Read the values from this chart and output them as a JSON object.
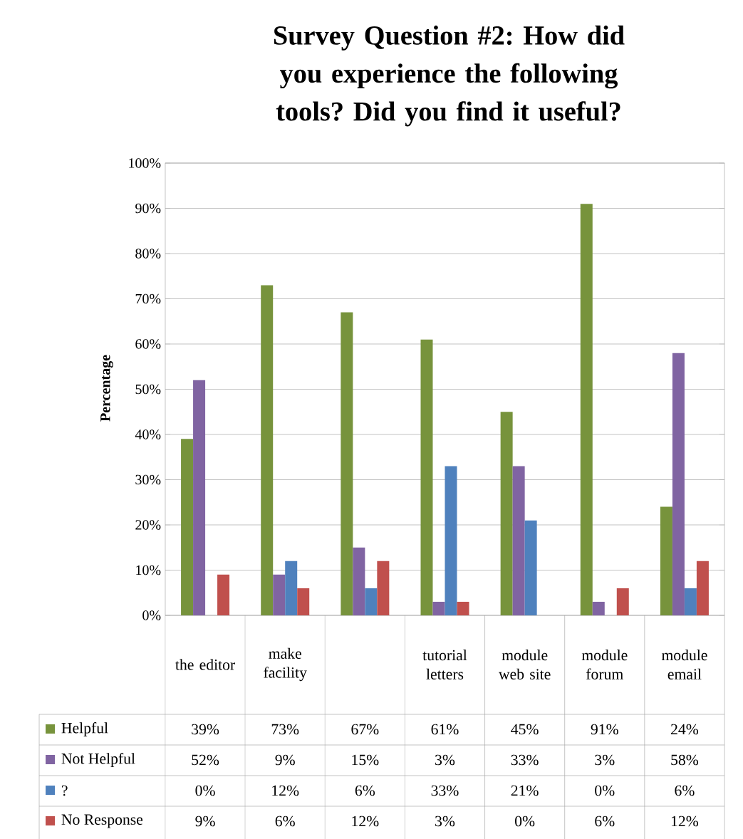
{
  "chart_data": {
    "type": "bar",
    "title": "Survey Question #2: How did you experience the following tools? Did you find it useful?",
    "ylabel": "Percentage",
    "categories": [
      "the editor",
      "make facility",
      null,
      "tutorial letters",
      "module web site",
      "module forum",
      "module email"
    ],
    "series": [
      {
        "name": "Helpful",
        "color": "#77933c",
        "values": [
          39,
          73,
          67,
          61,
          45,
          91,
          24
        ],
        "value_labels": [
          "39%",
          "73%",
          "67%",
          "61%",
          "45%",
          "91%",
          "24%"
        ]
      },
      {
        "name": "Not Helpful",
        "color": "#8064a2",
        "values": [
          52,
          9,
          15,
          3,
          33,
          3,
          58
        ],
        "value_labels": [
          "52%",
          "9%",
          "15%",
          "3%",
          "33%",
          "3%",
          "58%"
        ]
      },
      {
        "name": "?",
        "color": "#4f81bd",
        "values": [
          0,
          12,
          6,
          33,
          21,
          0,
          6
        ],
        "value_labels": [
          "0%",
          "12%",
          "6%",
          "33%",
          "21%",
          "0%",
          "6%"
        ]
      },
      {
        "name": "No Response",
        "color": "#c0504d",
        "values": [
          9,
          6,
          12,
          3,
          0,
          6,
          12
        ],
        "value_labels": [
          "9%",
          "6%",
          "12%",
          "3%",
          "0%",
          "6%",
          "12%"
        ]
      }
    ],
    "ylim": [
      0,
      100
    ],
    "yticks": [
      {
        "value": 0,
        "label": "0%"
      },
      {
        "value": 10,
        "label": "10%"
      },
      {
        "value": 20,
        "label": "20%"
      },
      {
        "value": 30,
        "label": "30%"
      },
      {
        "value": 40,
        "label": "40%"
      },
      {
        "value": 50,
        "label": "50%"
      },
      {
        "value": 60,
        "label": "60%"
      },
      {
        "value": 70,
        "label": "70%"
      },
      {
        "value": 80,
        "label": "80%"
      },
      {
        "value": 90,
        "label": "90%"
      },
      {
        "value": 100,
        "label": "100%"
      }
    ],
    "grid": "y",
    "legend": "bottom"
  }
}
